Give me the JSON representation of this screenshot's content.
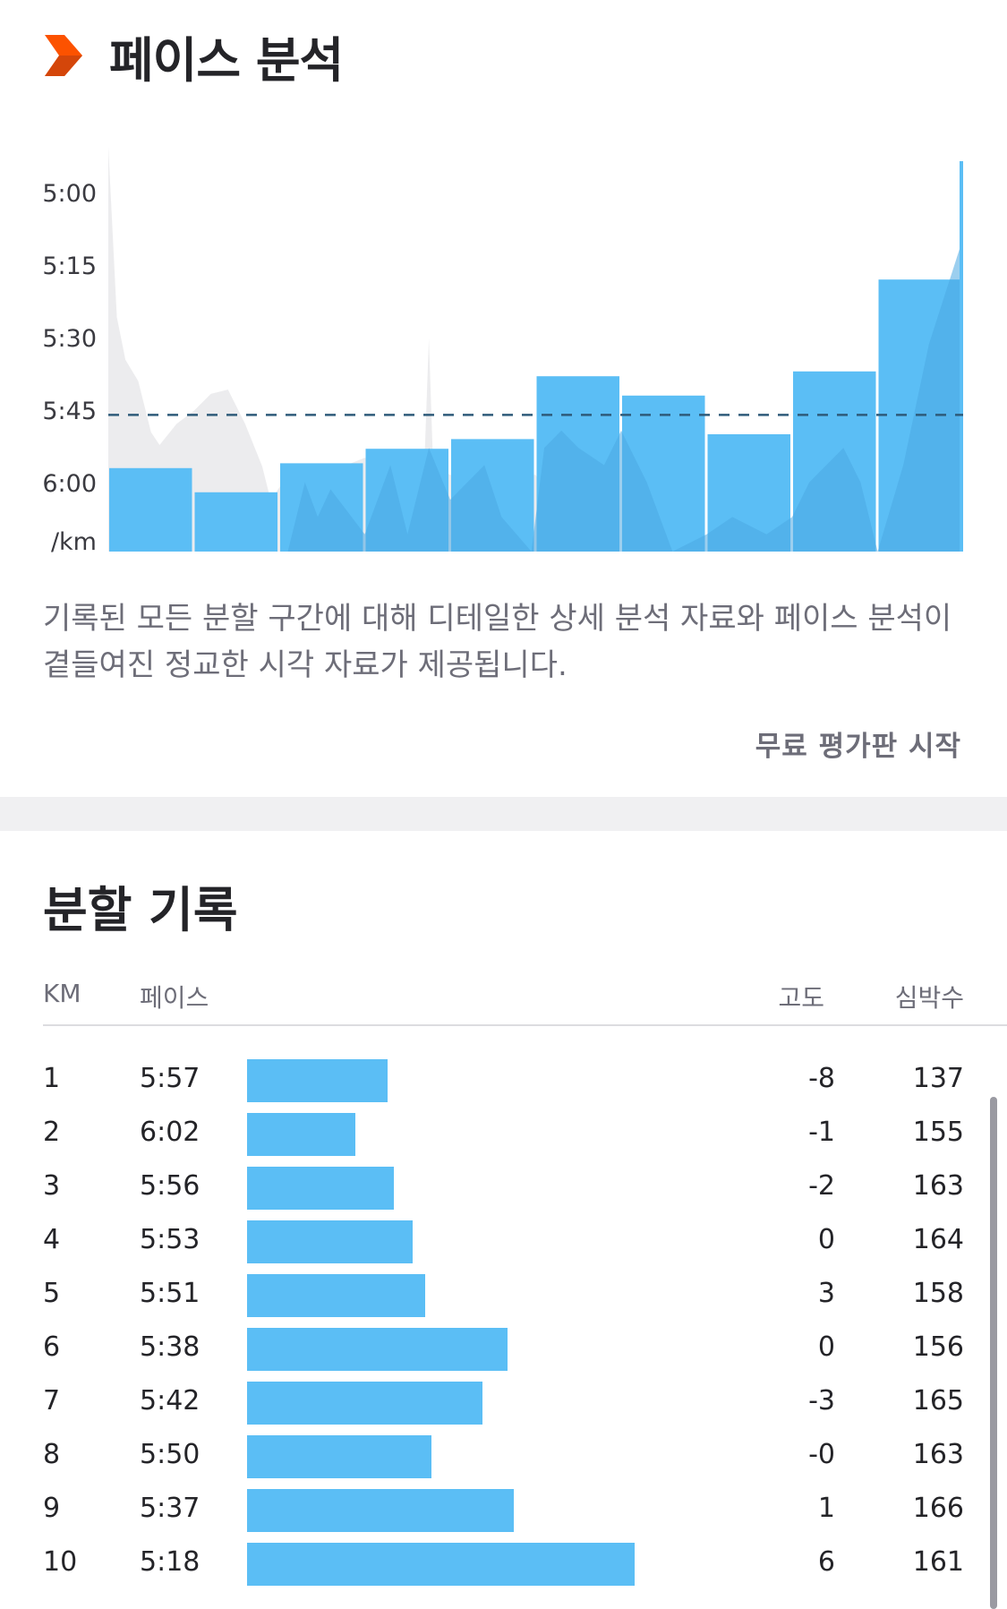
{
  "colors": {
    "accent": "#fc5200",
    "bar": "#5bbef5",
    "bar_dark": "#4aa8e2",
    "muted_text": "#6d6d78",
    "avg_line": "#2f5b7a"
  },
  "pace_section": {
    "title": "페이스 분석",
    "icon": "chevron-right-icon",
    "description": "기록된 모든 분할 구간에 대해 디테일한 상세 분석 자료와 페이스 분석이 곁들여진 정교한 시각 자료가 제공됩니다.",
    "trial_link": "무료 평가판 시작"
  },
  "chart_data": {
    "type": "bar",
    "y_tick_labels": [
      "5:00",
      "5:15",
      "5:30",
      "5:45",
      "6:00"
    ],
    "y_unit_label": "/km",
    "ylim_seconds": [
      290,
      380
    ],
    "y_inverted": true,
    "categories": [
      "1",
      "2",
      "3",
      "4",
      "5",
      "6",
      "7",
      "8",
      "9",
      "10"
    ],
    "pace_seconds": [
      357,
      362,
      356,
      353,
      351,
      338,
      342,
      350,
      337,
      318
    ],
    "average_pace_seconds": 346
  },
  "splits": {
    "title": "분할 기록",
    "columns": {
      "km": "KM",
      "pace": "페이스",
      "elevation": "고도",
      "heart_rate": "심박수"
    },
    "rows": [
      {
        "km": "1",
        "pace": "5:57",
        "elev": "-8",
        "hr": "137",
        "pace_seconds": 357
      },
      {
        "km": "2",
        "pace": "6:02",
        "elev": "-1",
        "hr": "155",
        "pace_seconds": 362
      },
      {
        "km": "3",
        "pace": "5:56",
        "elev": "-2",
        "hr": "163",
        "pace_seconds": 356
      },
      {
        "km": "4",
        "pace": "5:53",
        "elev": "0",
        "hr": "164",
        "pace_seconds": 353
      },
      {
        "km": "5",
        "pace": "5:51",
        "elev": "3",
        "hr": "158",
        "pace_seconds": 351
      },
      {
        "km": "6",
        "pace": "5:38",
        "elev": "0",
        "hr": "156",
        "pace_seconds": 338
      },
      {
        "km": "7",
        "pace": "5:42",
        "elev": "-3",
        "hr": "165",
        "pace_seconds": 342
      },
      {
        "km": "8",
        "pace": "5:50",
        "elev": "-0",
        "hr": "163",
        "pace_seconds": 350
      },
      {
        "km": "9",
        "pace": "5:37",
        "elev": "1",
        "hr": "166",
        "pace_seconds": 337
      },
      {
        "km": "10",
        "pace": "5:18",
        "elev": "6",
        "hr": "161",
        "pace_seconds": 318
      }
    ]
  }
}
